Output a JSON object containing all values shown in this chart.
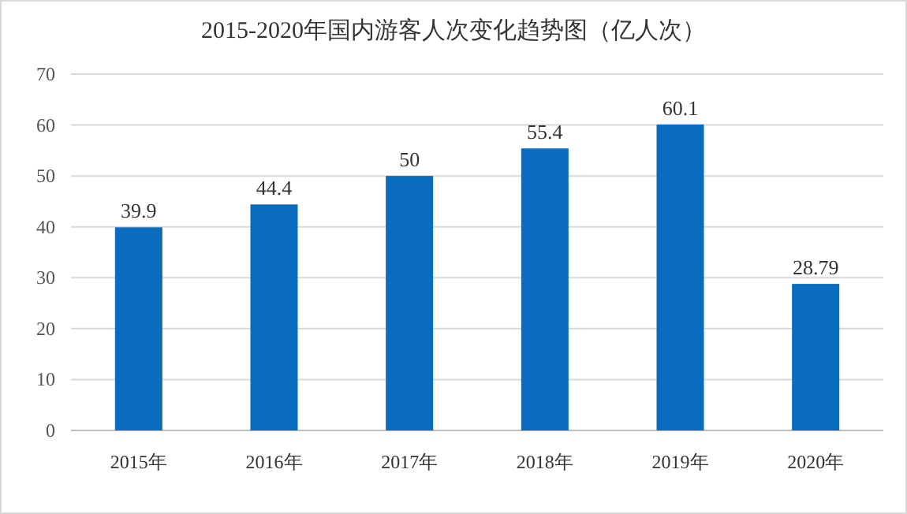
{
  "chart_data": {
    "type": "bar",
    "title": "2015-2020年国内游客人次变化趋势图（亿人次）",
    "categories": [
      "2015年",
      "2016年",
      "2017年",
      "2018年",
      "2019年",
      "2020年"
    ],
    "values": [
      39.9,
      44.4,
      50,
      55.4,
      60.1,
      28.79
    ],
    "color": "#0a6cbf",
    "ylim": [
      0,
      70
    ],
    "yticks": [
      0,
      10,
      20,
      30,
      40,
      50,
      60,
      70
    ],
    "grid": "y",
    "data_labels": true
  }
}
